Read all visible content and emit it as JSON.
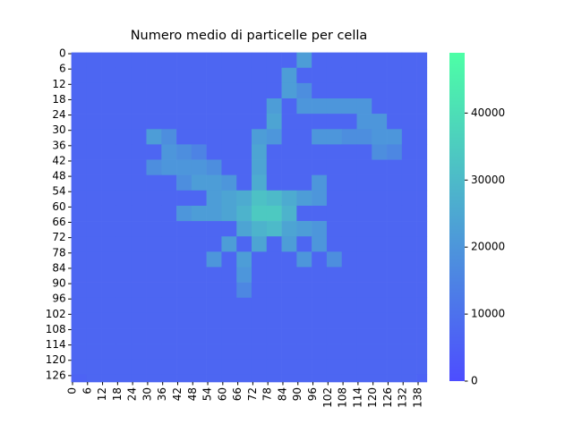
{
  "chart_data": {
    "type": "heatmap",
    "title": "Numero medio di particelle per cella",
    "xlim": [
      0,
      142
    ],
    "ylim": [
      0,
      129
    ],
    "xticks": [
      0,
      6,
      12,
      18,
      24,
      30,
      36,
      42,
      48,
      54,
      60,
      66,
      72,
      78,
      84,
      90,
      96,
      102,
      108,
      114,
      120,
      126,
      132,
      138
    ],
    "yticks": [
      0,
      6,
      12,
      18,
      24,
      30,
      36,
      42,
      48,
      54,
      60,
      66,
      72,
      78,
      84,
      90,
      96,
      102,
      108,
      114,
      120,
      126
    ],
    "colormap": [
      "#4d4dff",
      "#4dffa6"
    ],
    "clim": [
      0,
      49000
    ],
    "cticks": [
      0,
      10000,
      20000,
      30000,
      40000
    ],
    "values": [
      [
        7000,
        7000,
        7000,
        7000,
        7000,
        7000,
        7000,
        7000,
        7000,
        7000,
        7000,
        7000,
        7000,
        7000,
        7000,
        22000,
        7000,
        7000,
        7000,
        7000,
        7000,
        7000,
        7000,
        7000
      ],
      [
        7000,
        7000,
        7000,
        7000,
        7000,
        7000,
        7000,
        7000,
        7000,
        7000,
        7000,
        7000,
        7000,
        7000,
        22000,
        7000,
        7000,
        7000,
        7000,
        7000,
        7000,
        7000,
        7000,
        7000
      ],
      [
        7000,
        7000,
        7000,
        7000,
        7000,
        7000,
        7000,
        7000,
        7000,
        7000,
        7000,
        7000,
        7000,
        7000,
        22000,
        18000,
        7000,
        7000,
        7000,
        7000,
        7000,
        7000,
        7000,
        7000
      ],
      [
        7000,
        7000,
        7000,
        7000,
        7000,
        7000,
        7000,
        7000,
        7000,
        7000,
        7000,
        7000,
        7000,
        22000,
        7000,
        20000,
        20000,
        20000,
        20000,
        20000,
        7000,
        7000,
        7000,
        7000
      ],
      [
        7000,
        7000,
        7000,
        7000,
        7000,
        7000,
        7000,
        7000,
        7000,
        7000,
        7000,
        7000,
        7000,
        24000,
        7000,
        7000,
        7000,
        7000,
        7000,
        20000,
        20000,
        7000,
        7000,
        7000
      ],
      [
        7000,
        7000,
        7000,
        7000,
        7000,
        22000,
        18000,
        7000,
        7000,
        7000,
        7000,
        7000,
        22000,
        20000,
        7000,
        7000,
        20000,
        20000,
        18000,
        18000,
        20000,
        20000,
        7000,
        7000
      ],
      [
        7000,
        7000,
        7000,
        7000,
        7000,
        7000,
        20000,
        18000,
        15000,
        7000,
        7000,
        7000,
        24000,
        7000,
        7000,
        7000,
        7000,
        7000,
        7000,
        7000,
        18000,
        16000,
        7000,
        7000
      ],
      [
        7000,
        7000,
        7000,
        7000,
        7000,
        18000,
        20000,
        20000,
        20000,
        18000,
        7000,
        7000,
        24000,
        7000,
        7000,
        7000,
        7000,
        7000,
        7000,
        7000,
        7000,
        7000,
        7000,
        7000
      ],
      [
        7000,
        7000,
        7000,
        7000,
        7000,
        7000,
        7000,
        18000,
        22000,
        22000,
        20000,
        7000,
        26000,
        7000,
        7000,
        7000,
        20000,
        7000,
        7000,
        7000,
        7000,
        7000,
        7000,
        7000
      ],
      [
        7000,
        7000,
        7000,
        7000,
        7000,
        7000,
        7000,
        7000,
        7000,
        22000,
        24000,
        26000,
        32000,
        30000,
        26000,
        22000,
        20000,
        7000,
        7000,
        7000,
        7000,
        7000,
        7000,
        7000
      ],
      [
        7000,
        7000,
        7000,
        7000,
        7000,
        7000,
        7000,
        20000,
        22000,
        22000,
        24000,
        28000,
        34000,
        34000,
        28000,
        7000,
        7000,
        7000,
        7000,
        7000,
        7000,
        7000,
        7000,
        7000
      ],
      [
        7000,
        7000,
        7000,
        7000,
        7000,
        7000,
        7000,
        7000,
        7000,
        7000,
        7000,
        24000,
        28000,
        30000,
        24000,
        22000,
        20000,
        7000,
        7000,
        7000,
        7000,
        7000,
        7000,
        7000
      ],
      [
        7000,
        7000,
        7000,
        7000,
        7000,
        7000,
        7000,
        7000,
        7000,
        7000,
        22000,
        7000,
        24000,
        7000,
        22000,
        7000,
        20000,
        7000,
        7000,
        7000,
        7000,
        7000,
        7000,
        7000
      ],
      [
        7000,
        7000,
        7000,
        7000,
        7000,
        7000,
        7000,
        7000,
        7000,
        20000,
        7000,
        22000,
        7000,
        7000,
        7000,
        20000,
        7000,
        18000,
        7000,
        7000,
        7000,
        7000,
        7000,
        7000
      ],
      [
        7000,
        7000,
        7000,
        7000,
        7000,
        7000,
        7000,
        7000,
        7000,
        7000,
        7000,
        20000,
        7000,
        7000,
        7000,
        7000,
        7000,
        7000,
        7000,
        7000,
        7000,
        7000,
        7000,
        7000
      ],
      [
        7000,
        7000,
        7000,
        7000,
        7000,
        7000,
        7000,
        7000,
        7000,
        7000,
        7000,
        16000,
        7000,
        7000,
        7000,
        7000,
        7000,
        7000,
        7000,
        7000,
        7000,
        7000,
        7000,
        7000
      ],
      [
        7000,
        7000,
        7000,
        7000,
        7000,
        7000,
        7000,
        7000,
        7000,
        7000,
        7000,
        7000,
        7000,
        7000,
        7000,
        7000,
        7000,
        7000,
        7000,
        7000,
        7000,
        7000,
        7000,
        7000
      ],
      [
        7000,
        7000,
        7000,
        7000,
        7000,
        7000,
        7000,
        7000,
        7000,
        7000,
        7000,
        7000,
        7000,
        7000,
        7000,
        7000,
        7000,
        7000,
        7000,
        7000,
        7000,
        7000,
        7000,
        7000
      ],
      [
        7000,
        7000,
        7000,
        7000,
        7000,
        7000,
        7000,
        7000,
        7000,
        7000,
        7000,
        7000,
        7000,
        7000,
        7000,
        7000,
        7000,
        7000,
        7000,
        7000,
        7000,
        7000,
        7000,
        7000
      ],
      [
        7000,
        7000,
        7000,
        7000,
        7000,
        7000,
        7000,
        7000,
        7000,
        7000,
        7000,
        7000,
        7000,
        7000,
        7000,
        7000,
        7000,
        7000,
        7000,
        7000,
        7000,
        7000,
        7000,
        7000
      ],
      [
        7000,
        7000,
        7000,
        7000,
        7000,
        7000,
        7000,
        7000,
        7000,
        7000,
        7000,
        7000,
        7000,
        7000,
        7000,
        7000,
        7000,
        7000,
        7000,
        7000,
        7000,
        7000,
        7000,
        7000
      ],
      [
        6000,
        7000,
        7000,
        7000,
        7000,
        7000,
        7000,
        7000,
        7000,
        7000,
        7000,
        7000,
        7000,
        7000,
        7000,
        7000,
        7000,
        7000,
        7000,
        7000,
        7000,
        7000,
        7000,
        6000
      ]
    ]
  }
}
